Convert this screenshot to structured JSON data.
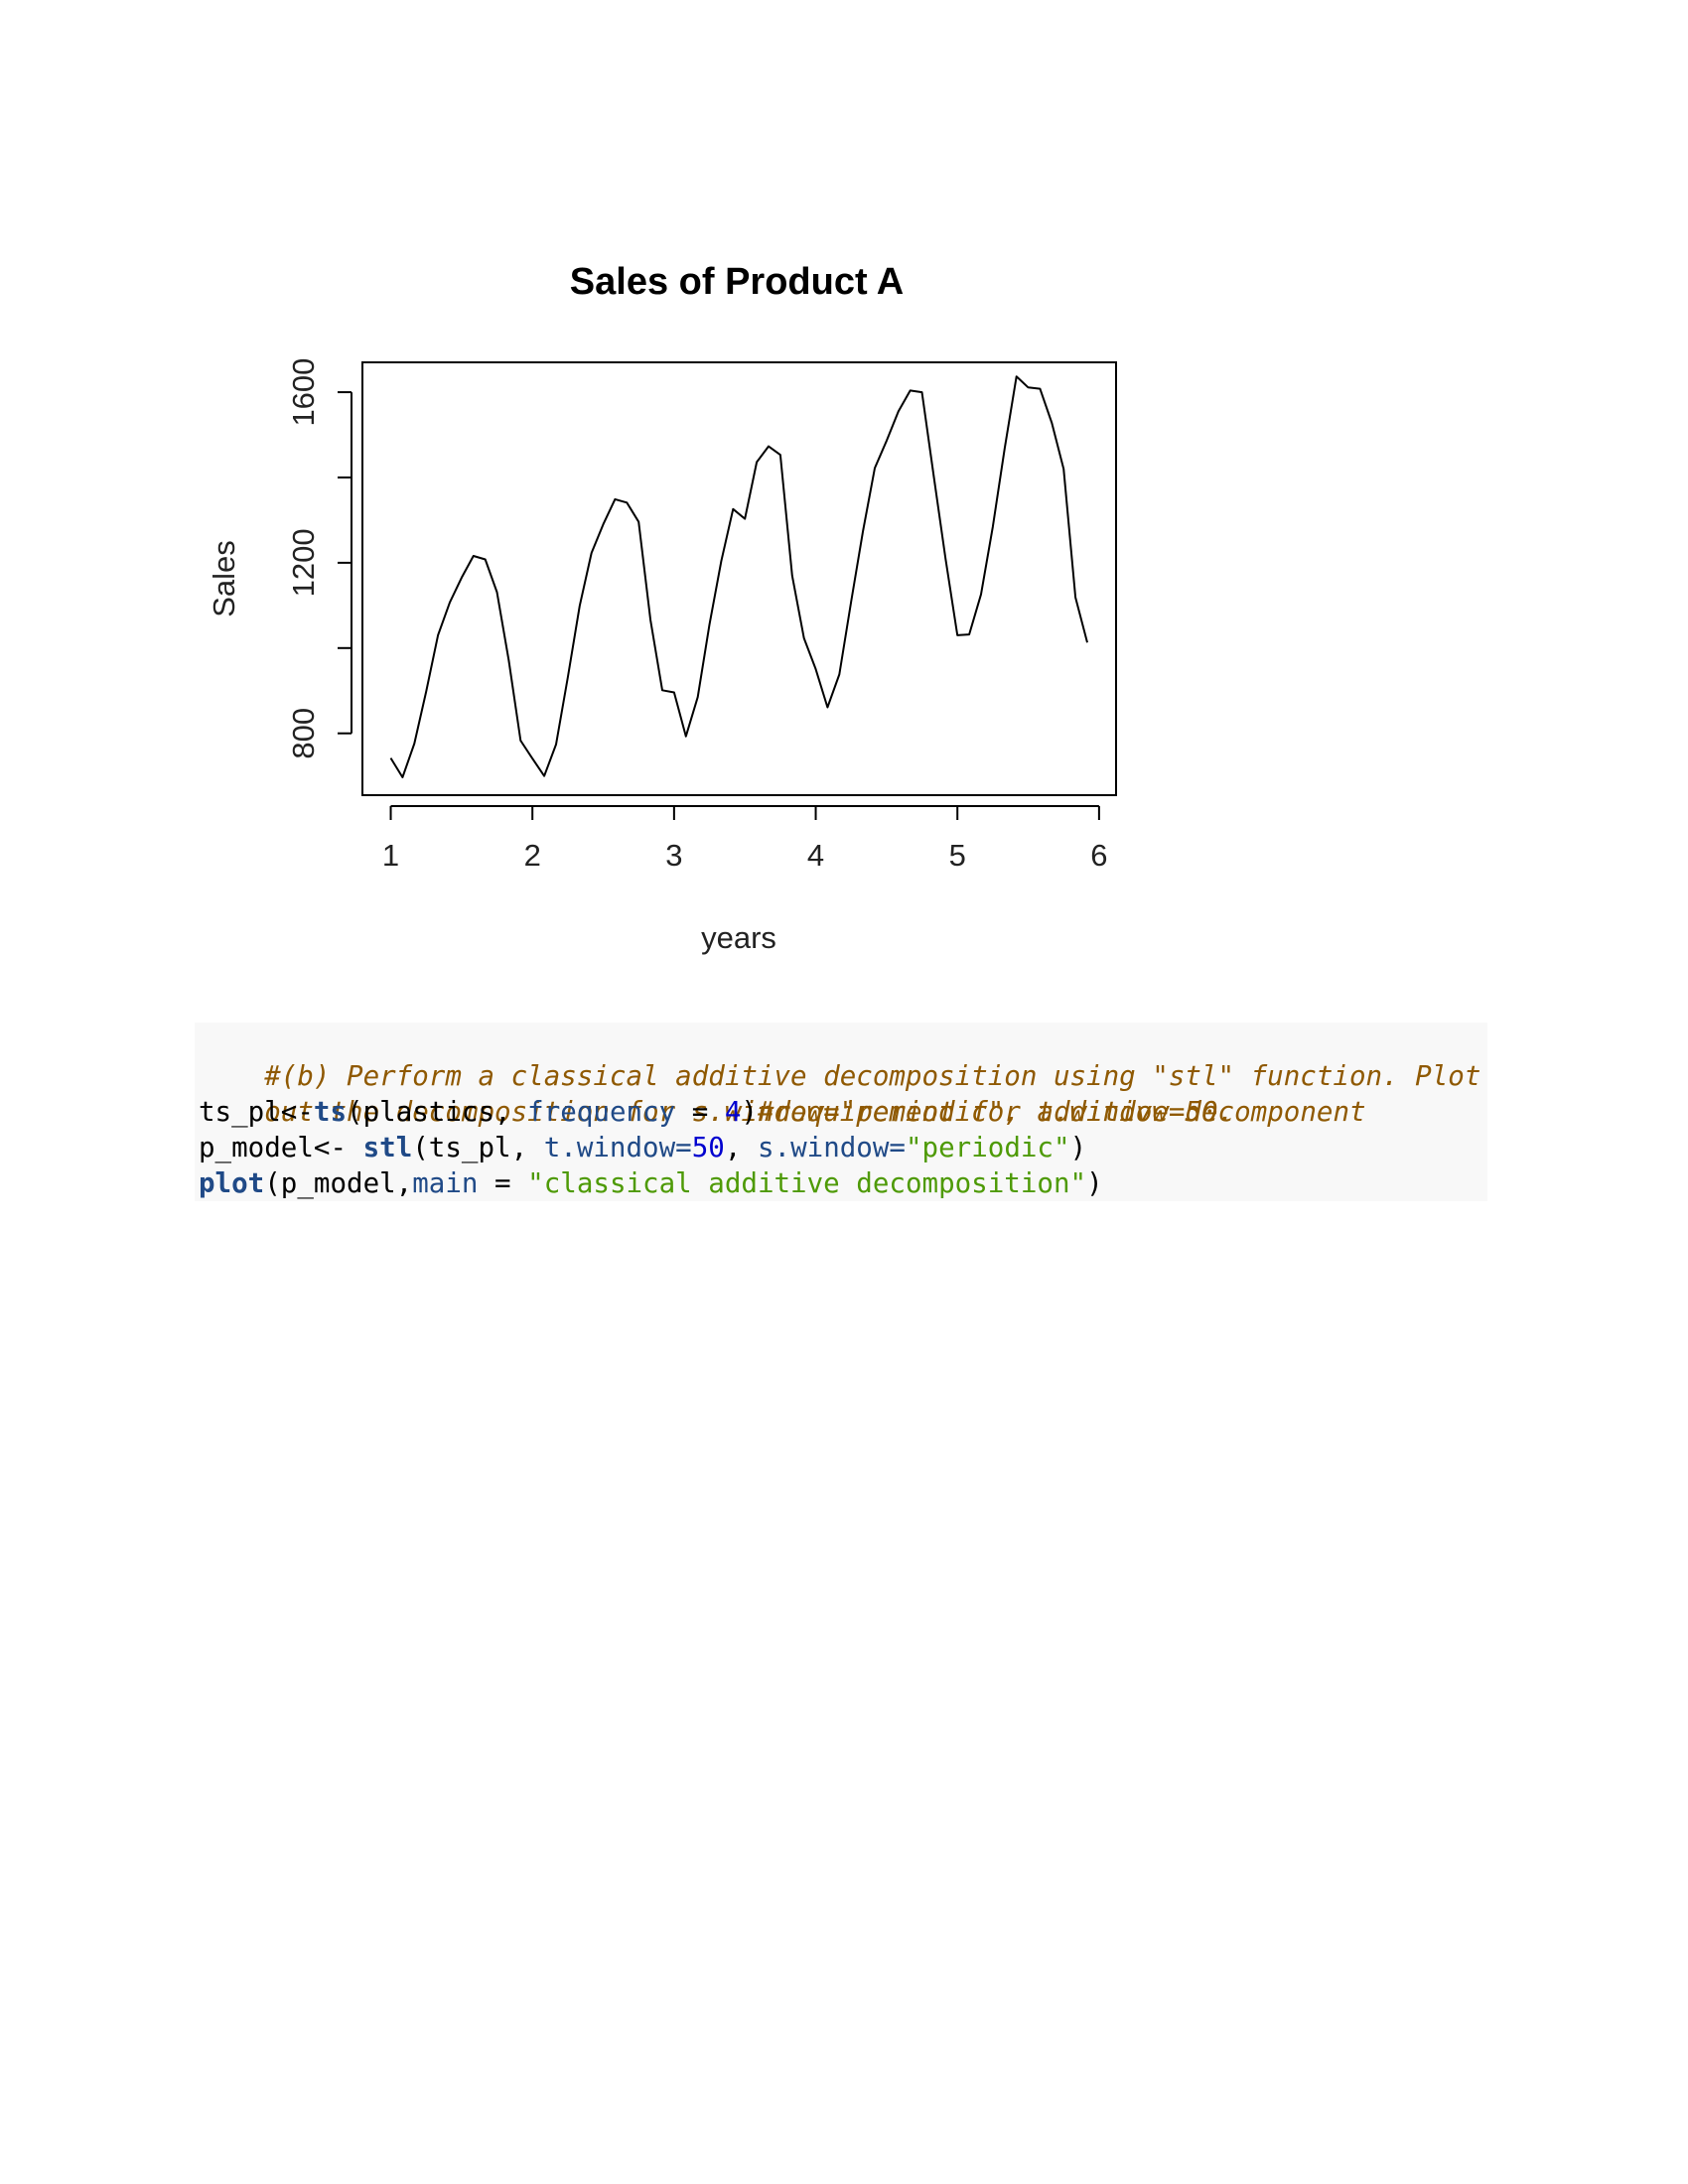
{
  "chart_data": {
    "type": "line",
    "title": "Sales of Product A",
    "xlabel": "years",
    "ylabel": "Sales",
    "xlim": [
      0.8,
      6.12
    ],
    "ylim": [
      655,
      1670
    ],
    "x_ticks": [
      1,
      2,
      3,
      4,
      5,
      6
    ],
    "y_ticks": [
      800,
      1000,
      1200,
      1400,
      1600
    ],
    "y_tick_labels": [
      "800",
      "",
      "1200",
      "",
      "1600"
    ],
    "grid": false,
    "series": [
      {
        "color": "#000000",
        "x": [
          1.0,
          1.0833,
          1.1667,
          1.25,
          1.3333,
          1.4167,
          1.5,
          1.5833,
          1.6667,
          1.75,
          1.8333,
          1.9167,
          2.0,
          2.0833,
          2.1667,
          2.25,
          2.3333,
          2.4167,
          2.5,
          2.5833,
          2.6667,
          2.75,
          2.8333,
          2.9167,
          3.0,
          3.0833,
          3.1667,
          3.25,
          3.3333,
          3.4167,
          3.5,
          3.5833,
          3.6667,
          3.75,
          3.8333,
          3.9167,
          4.0,
          4.0833,
          4.1667,
          4.25,
          4.3333,
          4.4167,
          4.5,
          4.5833,
          4.6667,
          4.75,
          4.8333,
          4.9167,
          5.0,
          5.0833,
          5.1667,
          5.25,
          5.3333,
          5.4167,
          5.5,
          5.5833,
          5.6667,
          5.75,
          5.8333,
          5.9167
        ],
        "values": [
          742,
          697,
          776,
          898,
          1030,
          1107,
          1165,
          1216,
          1208,
          1131,
          971,
          783,
          741,
          700,
          774,
          932,
          1099,
          1223,
          1290,
          1349,
          1341,
          1296,
          1066,
          901,
          896,
          793,
          885,
          1055,
          1204,
          1326,
          1303,
          1436,
          1473,
          1453,
          1170,
          1023,
          951,
          861,
          938,
          1109,
          1274,
          1422,
          1486,
          1555,
          1604,
          1600,
          1403,
          1209,
          1030,
          1032,
          1126,
          1285,
          1468,
          1637,
          1611,
          1608,
          1528,
          1420,
          1119,
          1013
        ]
      }
    ]
  },
  "code": {
    "line1_comment": "#(b) Perform a classical additive decomposition using \"stl\" function. Plot",
    "line2_comment": "out the decomposition for s.window=\"periodic\", t.window=50.",
    "line3": {
      "p1": "ts_pl<-",
      "fn": "ts",
      "p2": "(plastics, ",
      "arg": "frequency",
      "op": " = ",
      "num": "4",
      "p3": ")",
      "comment": "#requirement for additive decomponent"
    },
    "line4": {
      "p1": "p_model<- ",
      "fn": "stl",
      "p2": "(ts_pl, ",
      "arg1": "t.window=",
      "num": "50",
      "p3": ", ",
      "arg2": "s.window=",
      "str": "\"periodic\"",
      "p4": ")"
    },
    "line5": {
      "fn": "plot",
      "p1": "(p_model,",
      "arg": "main",
      "op": " = ",
      "str": "\"classical additive decomposition\"",
      "p2": ")"
    }
  }
}
